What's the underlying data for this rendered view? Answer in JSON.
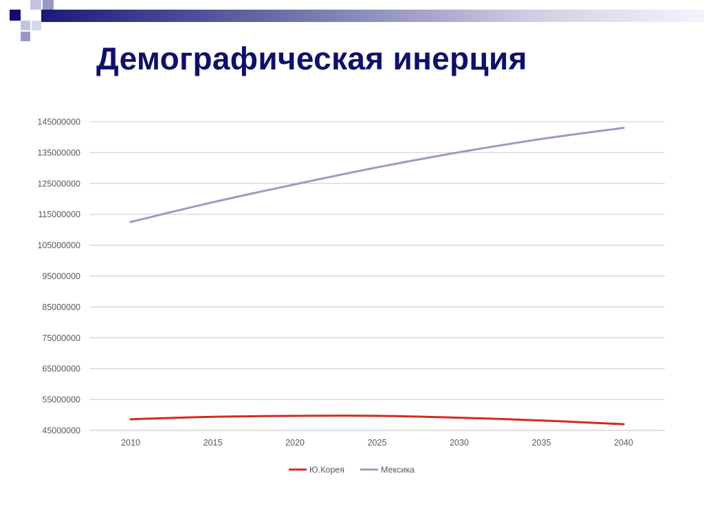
{
  "slide": {
    "title": "Демографическая инерция",
    "colors": {
      "title": "#0f0f6e",
      "bar_dark": "#1a1a7a",
      "square_dark": "#0d0d70",
      "square_mid": "#9898c8",
      "square_light": "#c4c4e0"
    },
    "decor_icons": [
      "corner-squares-pattern-icon",
      "gradient-bar-icon"
    ]
  },
  "chart_data": {
    "type": "line",
    "title": "",
    "xlabel": "",
    "ylabel": "",
    "categories": [
      "2010",
      "2015",
      "2020",
      "2025",
      "2030",
      "2035",
      "2040"
    ],
    "y_ticks": [
      "45000000",
      "55000000",
      "65000000",
      "75000000",
      "85000000",
      "95000000",
      "105000000",
      "115000000",
      "125000000",
      "135000000",
      "145000000"
    ],
    "ylim": [
      45000000,
      145000000
    ],
    "grid": true,
    "legend_position": "bottom",
    "series": [
      {
        "name": "Ю.Корея",
        "color": "#d42a1f",
        "values": [
          48600000,
          49400000,
          49700000,
          49700000,
          49100000,
          48200000,
          47000000
        ]
      },
      {
        "name": "Мексика",
        "color": "#9a9ac2",
        "values": [
          112500000,
          118900000,
          124700000,
          130200000,
          135100000,
          139400000,
          143000000
        ]
      }
    ]
  }
}
